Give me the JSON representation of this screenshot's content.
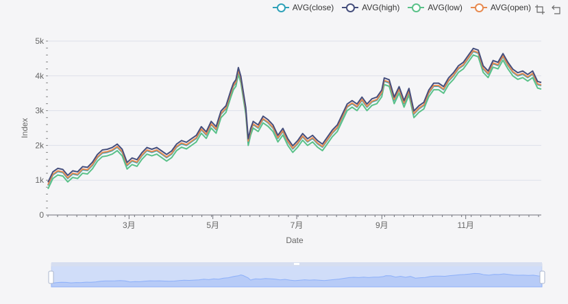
{
  "legend": [
    {
      "name": "AVG(close)",
      "color": "#2ea1b8"
    },
    {
      "name": "AVG(high)",
      "color": "#454e7c"
    },
    {
      "name": "AVG(low)",
      "color": "#5ac189"
    },
    {
      "name": "AVG(open)",
      "color": "#e78a50"
    }
  ],
  "toolbox": {
    "zoom_icon": "data-zoom-icon",
    "restore_icon": "restore-icon"
  },
  "chart_data": {
    "type": "line",
    "xlabel": "Date",
    "ylabel": "Index",
    "ylim": [
      0,
      5000
    ],
    "y_ticks": [
      0,
      1000,
      2000,
      3000,
      4000,
      5000
    ],
    "y_tick_labels": [
      "0",
      "1k",
      "2k",
      "3k",
      "4k",
      "5k"
    ],
    "x_tick_labels": [
      "3月",
      "5月",
      "7月",
      "9月",
      "11月"
    ],
    "x_range_days": [
      0,
      359
    ],
    "x_tick_days": [
      59,
      120,
      181,
      243,
      304
    ],
    "grid": true,
    "legend_position": "top-right",
    "base_series": [
      [
        0,
        850
      ],
      [
        4,
        1150
      ],
      [
        8,
        1250
      ],
      [
        12,
        1220
      ],
      [
        16,
        1050
      ],
      [
        20,
        1180
      ],
      [
        24,
        1150
      ],
      [
        28,
        1300
      ],
      [
        32,
        1280
      ],
      [
        36,
        1430
      ],
      [
        40,
        1650
      ],
      [
        44,
        1780
      ],
      [
        48,
        1800
      ],
      [
        52,
        1850
      ],
      [
        56,
        1950
      ],
      [
        60,
        1800
      ],
      [
        64,
        1420
      ],
      [
        68,
        1550
      ],
      [
        72,
        1500
      ],
      [
        76,
        1700
      ],
      [
        80,
        1850
      ],
      [
        84,
        1800
      ],
      [
        88,
        1850
      ],
      [
        92,
        1750
      ],
      [
        96,
        1650
      ],
      [
        100,
        1750
      ],
      [
        104,
        1950
      ],
      [
        108,
        2050
      ],
      [
        112,
        2000
      ],
      [
        116,
        2100
      ],
      [
        120,
        2200
      ],
      [
        124,
        2450
      ],
      [
        128,
        2300
      ],
      [
        132,
        2600
      ],
      [
        136,
        2450
      ],
      [
        140,
        2900
      ],
      [
        144,
        3050
      ],
      [
        148,
        3500
      ],
      [
        150,
        3700
      ],
      [
        152,
        3800
      ],
      [
        154,
        4150
      ],
      [
        156,
        3900
      ],
      [
        158,
        3450
      ],
      [
        160,
        3000
      ],
      [
        162,
        2100
      ],
      [
        164,
        2400
      ],
      [
        166,
        2600
      ],
      [
        170,
        2500
      ],
      [
        174,
        2750
      ],
      [
        178,
        2650
      ],
      [
        182,
        2500
      ],
      [
        186,
        2200
      ],
      [
        190,
        2400
      ],
      [
        194,
        2100
      ],
      [
        198,
        1900
      ],
      [
        202,
        2050
      ],
      [
        206,
        2250
      ],
      [
        210,
        2100
      ],
      [
        214,
        2200
      ],
      [
        218,
        2050
      ],
      [
        222,
        1950
      ],
      [
        226,
        2150
      ],
      [
        230,
        2350
      ],
      [
        234,
        2500
      ],
      [
        238,
        2800
      ],
      [
        242,
        3100
      ],
      [
        246,
        3200
      ],
      [
        250,
        3100
      ],
      [
        254,
        3300
      ],
      [
        258,
        3100
      ],
      [
        262,
        3250
      ],
      [
        266,
        3300
      ],
      [
        270,
        3500
      ],
      [
        272,
        3850
      ],
      [
        276,
        3800
      ],
      [
        280,
        3300
      ],
      [
        284,
        3600
      ],
      [
        288,
        3200
      ],
      [
        292,
        3550
      ],
      [
        296,
        2900
      ],
      [
        300,
        3050
      ],
      [
        304,
        3150
      ],
      [
        308,
        3500
      ],
      [
        312,
        3700
      ],
      [
        316,
        3700
      ],
      [
        320,
        3600
      ],
      [
        324,
        3850
      ],
      [
        328,
        4000
      ],
      [
        332,
        4200
      ],
      [
        336,
        4300
      ],
      [
        340,
        4500
      ],
      [
        344,
        4700
      ],
      [
        348,
        4650
      ],
      [
        352,
        4200
      ],
      [
        356,
        4050
      ],
      [
        360,
        4350
      ],
      [
        364,
        4300
      ],
      [
        368,
        4550
      ],
      [
        372,
        4300
      ],
      [
        376,
        4100
      ],
      [
        380,
        4000
      ],
      [
        384,
        4050
      ],
      [
        388,
        3950
      ],
      [
        392,
        4050
      ],
      [
        396,
        3750
      ],
      [
        399,
        3720
      ]
    ],
    "series": [
      {
        "name": "AVG(close)",
        "offset": 0,
        "color": "#2ea1b8"
      },
      {
        "name": "AVG(high)",
        "offset": 90,
        "color": "#454e7c"
      },
      {
        "name": "AVG(low)",
        "offset": -100,
        "color": "#5ac189"
      },
      {
        "name": "AVG(open)",
        "offset": 20,
        "color": "#e78a50"
      }
    ],
    "data_zoom": {
      "start": 0,
      "end": 100
    }
  }
}
